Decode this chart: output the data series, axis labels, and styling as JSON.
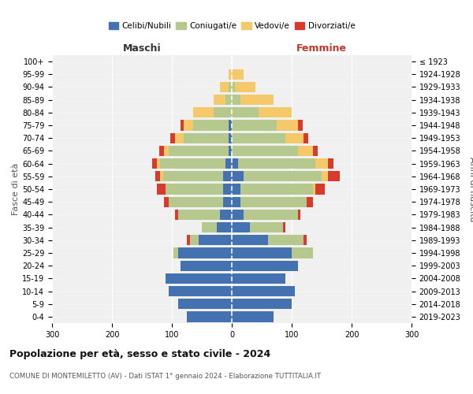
{
  "age_groups": [
    "0-4",
    "5-9",
    "10-14",
    "15-19",
    "20-24",
    "25-29",
    "30-34",
    "35-39",
    "40-44",
    "45-49",
    "50-54",
    "55-59",
    "60-64",
    "65-69",
    "70-74",
    "75-79",
    "80-84",
    "85-89",
    "90-94",
    "95-99",
    "100+"
  ],
  "birth_years": [
    "2019-2023",
    "2014-2018",
    "2009-2013",
    "2004-2008",
    "1999-2003",
    "1994-1998",
    "1989-1993",
    "1984-1988",
    "1979-1983",
    "1974-1978",
    "1969-1973",
    "1964-1968",
    "1959-1963",
    "1954-1958",
    "1949-1953",
    "1944-1948",
    "1939-1943",
    "1934-1938",
    "1929-1933",
    "1924-1928",
    "≤ 1923"
  ],
  "colors": {
    "celibe": "#4472b0",
    "coniugato": "#b5c98e",
    "vedovo": "#f5c96a",
    "divorziato": "#d93a2b"
  },
  "males": {
    "celibe": [
      75,
      90,
      105,
      110,
      85,
      90,
      55,
      25,
      20,
      15,
      15,
      15,
      10,
      5,
      5,
      5,
      0,
      0,
      0,
      0,
      0
    ],
    "coniugato": [
      0,
      0,
      0,
      0,
      0,
      8,
      15,
      25,
      70,
      90,
      95,
      100,
      110,
      100,
      75,
      60,
      30,
      10,
      5,
      0,
      0
    ],
    "vedovo": [
      0,
      0,
      0,
      0,
      0,
      0,
      0,
      0,
      0,
      0,
      0,
      5,
      5,
      8,
      15,
      15,
      35,
      20,
      15,
      5,
      0
    ],
    "divorziato": [
      0,
      0,
      0,
      0,
      0,
      0,
      5,
      0,
      5,
      8,
      15,
      8,
      8,
      8,
      8,
      5,
      0,
      0,
      0,
      0,
      0
    ]
  },
  "females": {
    "nubile": [
      70,
      100,
      105,
      90,
      110,
      100,
      60,
      30,
      20,
      15,
      15,
      20,
      10,
      0,
      0,
      0,
      0,
      0,
      0,
      0,
      0
    ],
    "coniugata": [
      0,
      0,
      0,
      0,
      0,
      35,
      60,
      55,
      90,
      110,
      120,
      130,
      130,
      110,
      90,
      75,
      45,
      15,
      5,
      0,
      0
    ],
    "vedova": [
      0,
      0,
      0,
      0,
      0,
      0,
      0,
      0,
      0,
      0,
      5,
      10,
      20,
      25,
      30,
      35,
      55,
      55,
      35,
      20,
      0
    ],
    "divorziata": [
      0,
      0,
      0,
      0,
      0,
      0,
      5,
      5,
      5,
      10,
      15,
      20,
      10,
      8,
      8,
      8,
      0,
      0,
      0,
      0,
      0
    ]
  },
  "xlim": 300,
  "title": "Popolazione per età, sesso e stato civile - 2024",
  "subtitle": "COMUNE DI MONTEMILETTO (AV) - Dati ISTAT 1° gennaio 2024 - Elaborazione TUTTITALIA.IT",
  "ylabel_left": "Fasce di età",
  "ylabel_right": "Anni di nascita",
  "xlabel_left": "Maschi",
  "xlabel_right": "Femmine",
  "bg_color": "#f0f0f0"
}
